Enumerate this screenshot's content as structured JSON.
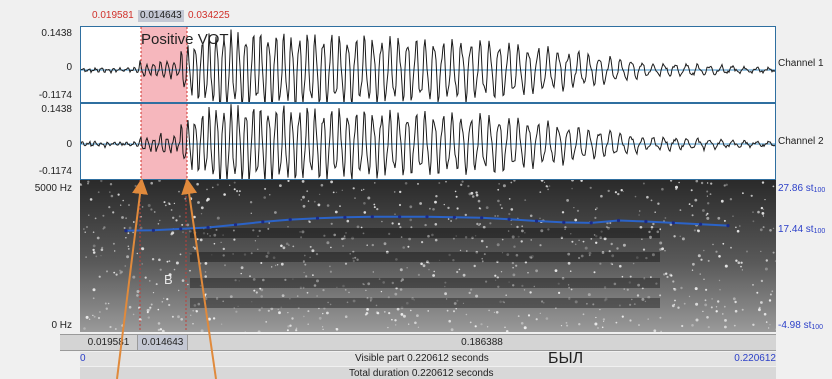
{
  "selection": {
    "start_label": "0.019581",
    "duration_label": "0.014643",
    "end_label": "0.034225",
    "annotation": "Positive VOT"
  },
  "waveforms": {
    "max_label": "0.1438",
    "zero_label": "0",
    "min_label": "-0.1174",
    "channel1_label": "Channel 1",
    "channel2_label": "Channel 2"
  },
  "spectrogram": {
    "top_label": "5000 Hz",
    "bottom_label": "0 Hz",
    "segment_label": "B",
    "pitch_top_label": "27.86 st",
    "pitch_mid_label": "17.44 st",
    "pitch_bottom_label": "-4.98 st",
    "pitch_unit_sub": "100",
    "pitch_contour_st": [
      16.9,
      17.0,
      17.3,
      17.6,
      18.2,
      18.8,
      19.3,
      19.6,
      19.8,
      19.9,
      19.9,
      19.9,
      19.8,
      19.7,
      19.4,
      19.0,
      18.7,
      18.6,
      19.1,
      18.9,
      18.6,
      18.3,
      18.0
    ]
  },
  "time_bar": {
    "seg1": "0.019581",
    "seg2": "0.014643",
    "seg3": "0.186388"
  },
  "info": {
    "left_value": "0",
    "visible_part": "Visible part 0.220612 seconds",
    "right_value": "0.220612",
    "total_duration": "Total duration 0.220612 seconds",
    "word": "БЫЛ"
  },
  "colors": {
    "selection": "#f6b7bd",
    "waveform": "#1a1a1a",
    "zero_line": "#3a8cc4",
    "pitch": "#2b63c8",
    "arrow": "#e08a3c"
  }
}
